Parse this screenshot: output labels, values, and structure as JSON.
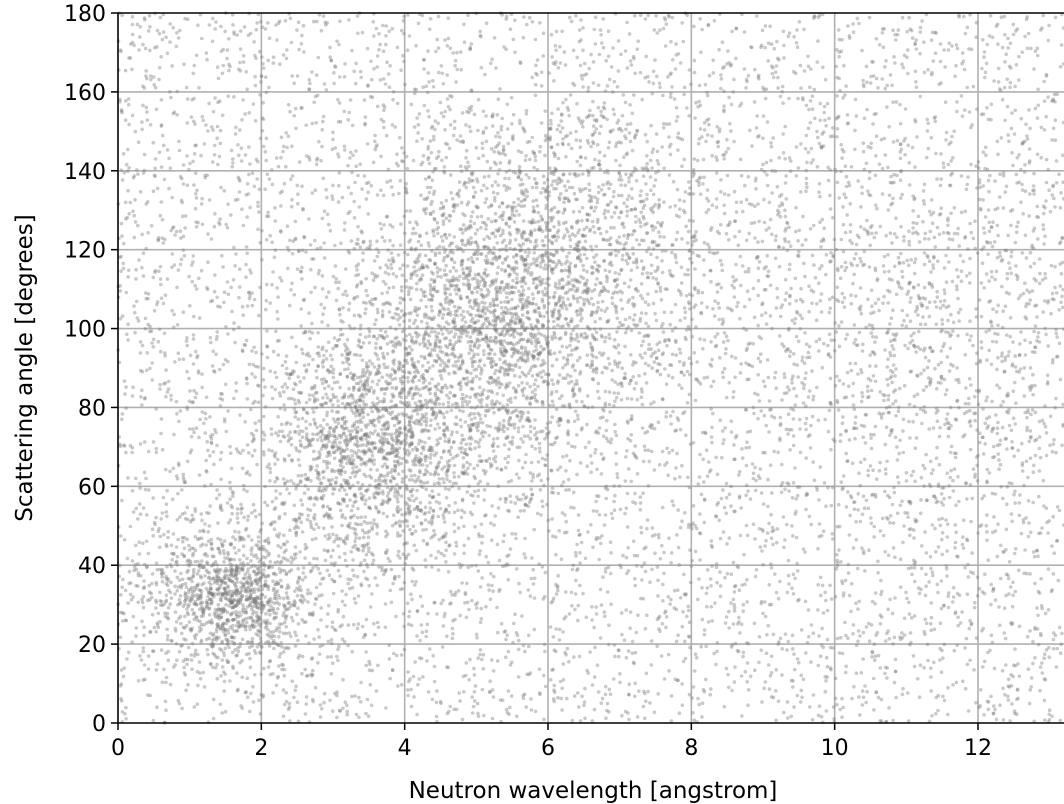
{
  "chart_data": {
    "type": "scatter",
    "title": "",
    "xlabel": "Neutron wavelength [angstrom]",
    "ylabel": "Scattering angle [degrees]",
    "xlim": [
      0,
      13.2
    ],
    "ylim": [
      0,
      180
    ],
    "x_ticks": [
      "0",
      "2",
      "4",
      "6",
      "8",
      "10",
      "12"
    ],
    "y_ticks": [
      "0",
      "20",
      "40",
      "60",
      "80",
      "100",
      "120",
      "140",
      "160",
      "180"
    ],
    "grid": true,
    "marker_color": "#7f7f7f",
    "grid_color": "#b0b0b0",
    "point_count": 12000,
    "seed": 1337,
    "components": [
      {
        "kind": "uniform",
        "weight": 0.55,
        "x_range": [
          0,
          13.2
        ],
        "y_range": [
          0,
          180
        ]
      },
      {
        "kind": "cluster",
        "weight": 0.09,
        "x": 1.6,
        "y": 32,
        "sx": 0.55,
        "sy": 9
      },
      {
        "kind": "cluster",
        "weight": 0.12,
        "x": 3.6,
        "y": 70,
        "sx": 0.8,
        "sy": 15
      },
      {
        "kind": "cluster",
        "weight": 0.11,
        "x": 5.2,
        "y": 100,
        "sx": 0.9,
        "sy": 16
      },
      {
        "kind": "cluster",
        "weight": 0.08,
        "x": 6.2,
        "y": 122,
        "sx": 1.2,
        "sy": 18
      },
      {
        "kind": "cluster",
        "weight": 0.05,
        "x": 11.2,
        "y": 95,
        "sx": 1.8,
        "sy": 25
      }
    ]
  }
}
